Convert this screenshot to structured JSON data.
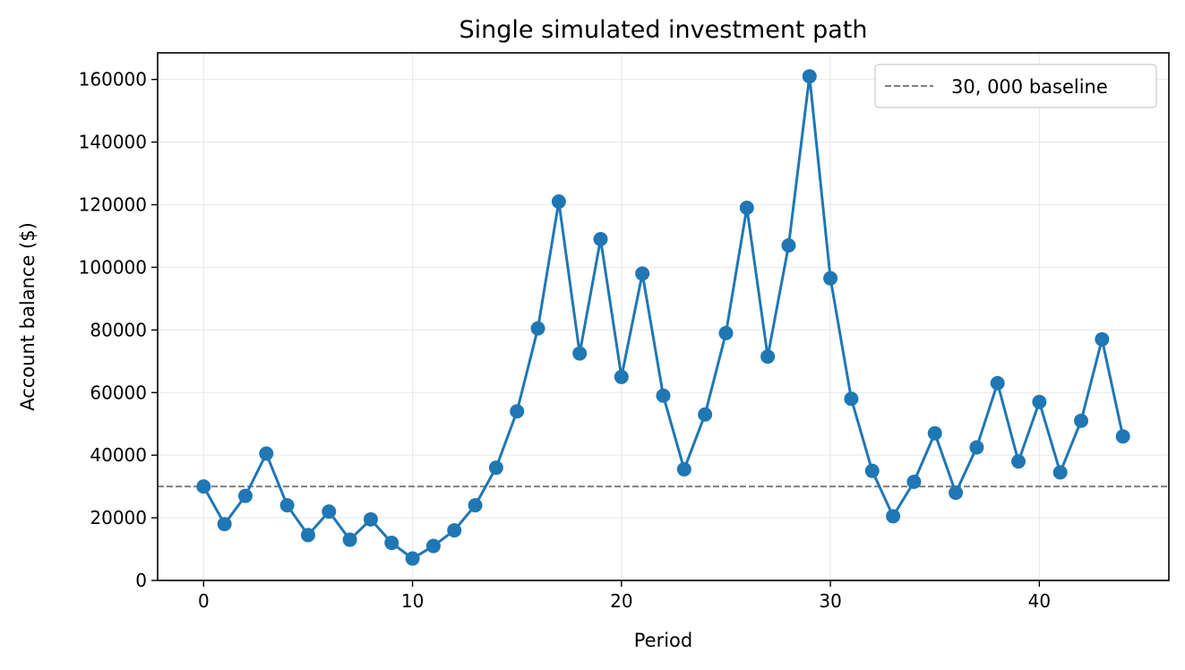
{
  "chart_data": {
    "type": "line",
    "title": "Single simulated investment path",
    "xlabel": "Period",
    "ylabel": "Account balance ($)",
    "xlim": [
      -2.2,
      46.2
    ],
    "ylim": [
      0,
      168500
    ],
    "xticks": [
      0,
      10,
      20,
      30,
      40
    ],
    "yticks": [
      0,
      20000,
      40000,
      60000,
      80000,
      100000,
      120000,
      140000,
      160000
    ],
    "grid": true,
    "legend_position": "top-right",
    "series": [
      {
        "x": [
          0,
          1,
          2,
          3,
          4,
          5,
          6,
          7,
          8,
          9,
          10,
          11,
          12,
          13,
          14,
          15,
          16,
          17,
          18,
          19,
          20,
          21,
          22,
          23,
          24,
          25,
          26,
          27,
          28,
          29,
          30,
          31,
          32,
          33,
          34,
          35,
          36,
          37,
          38,
          39,
          40,
          41,
          42,
          43,
          44
        ],
        "values": [
          30000,
          18000,
          27000,
          40500,
          24000,
          14500,
          22000,
          13000,
          19500,
          12000,
          7000,
          11000,
          16000,
          24000,
          36000,
          54000,
          80500,
          121000,
          72500,
          109000,
          65000,
          98000,
          59000,
          35500,
          53000,
          79000,
          119000,
          71500,
          107000,
          161000,
          96500,
          58000,
          35000,
          20500,
          31500,
          47000,
          28000,
          42500,
          63000,
          38000,
          57000,
          34500,
          51000,
          77000,
          46000
        ],
        "color": "#1f77b4"
      }
    ],
    "reference_line": {
      "name": "30, 000 baseline",
      "value": 30000,
      "color": "#808080",
      "style": "dashed"
    }
  }
}
